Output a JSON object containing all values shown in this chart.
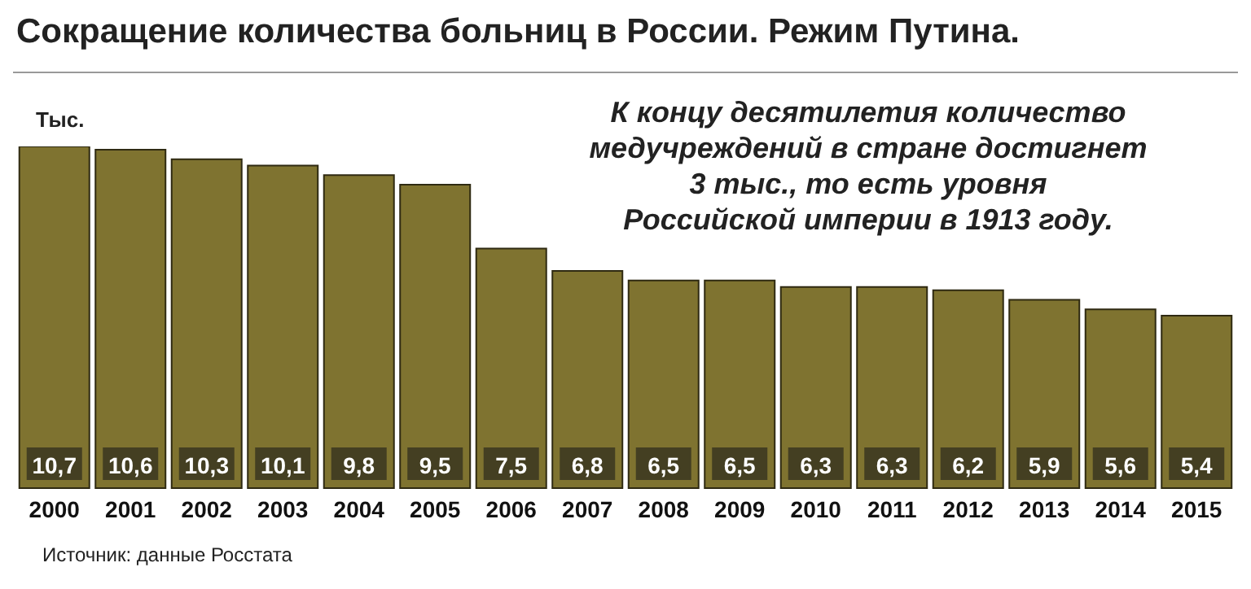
{
  "chart_data": {
    "type": "bar",
    "title": "Сокращение количества больниц в России.  Режим Путина.",
    "ylabel": "Тыс.",
    "annotations": [
      "К концу десятилетия количество\nмедучреждений в стране достигнет\n3 тыс., то есть уровня\nРоссийской империи в 1913 году.",
      "Источник:  данные Росстата"
    ],
    "categories": [
      "2000",
      "2001",
      "2002",
      "2003",
      "2004",
      "2005",
      "2006",
      "2007",
      "2008",
      "2009",
      "2010",
      "2011",
      "2012",
      "2013",
      "2014",
      "2015"
    ],
    "values": [
      10.7,
      10.6,
      10.3,
      10.1,
      9.8,
      9.5,
      7.5,
      6.8,
      6.5,
      6.5,
      6.3,
      6.3,
      6.2,
      5.9,
      5.6,
      5.4
    ],
    "value_labels": [
      "10,7",
      "10,6",
      "10,3",
      "10,1",
      "9,8",
      "9,5",
      "7,5",
      "6,8",
      "6,5",
      "6,5",
      "6,3",
      "6,3",
      "6,2",
      "5,9",
      "5,6",
      "5,4"
    ],
    "color": "#7f7330"
  }
}
